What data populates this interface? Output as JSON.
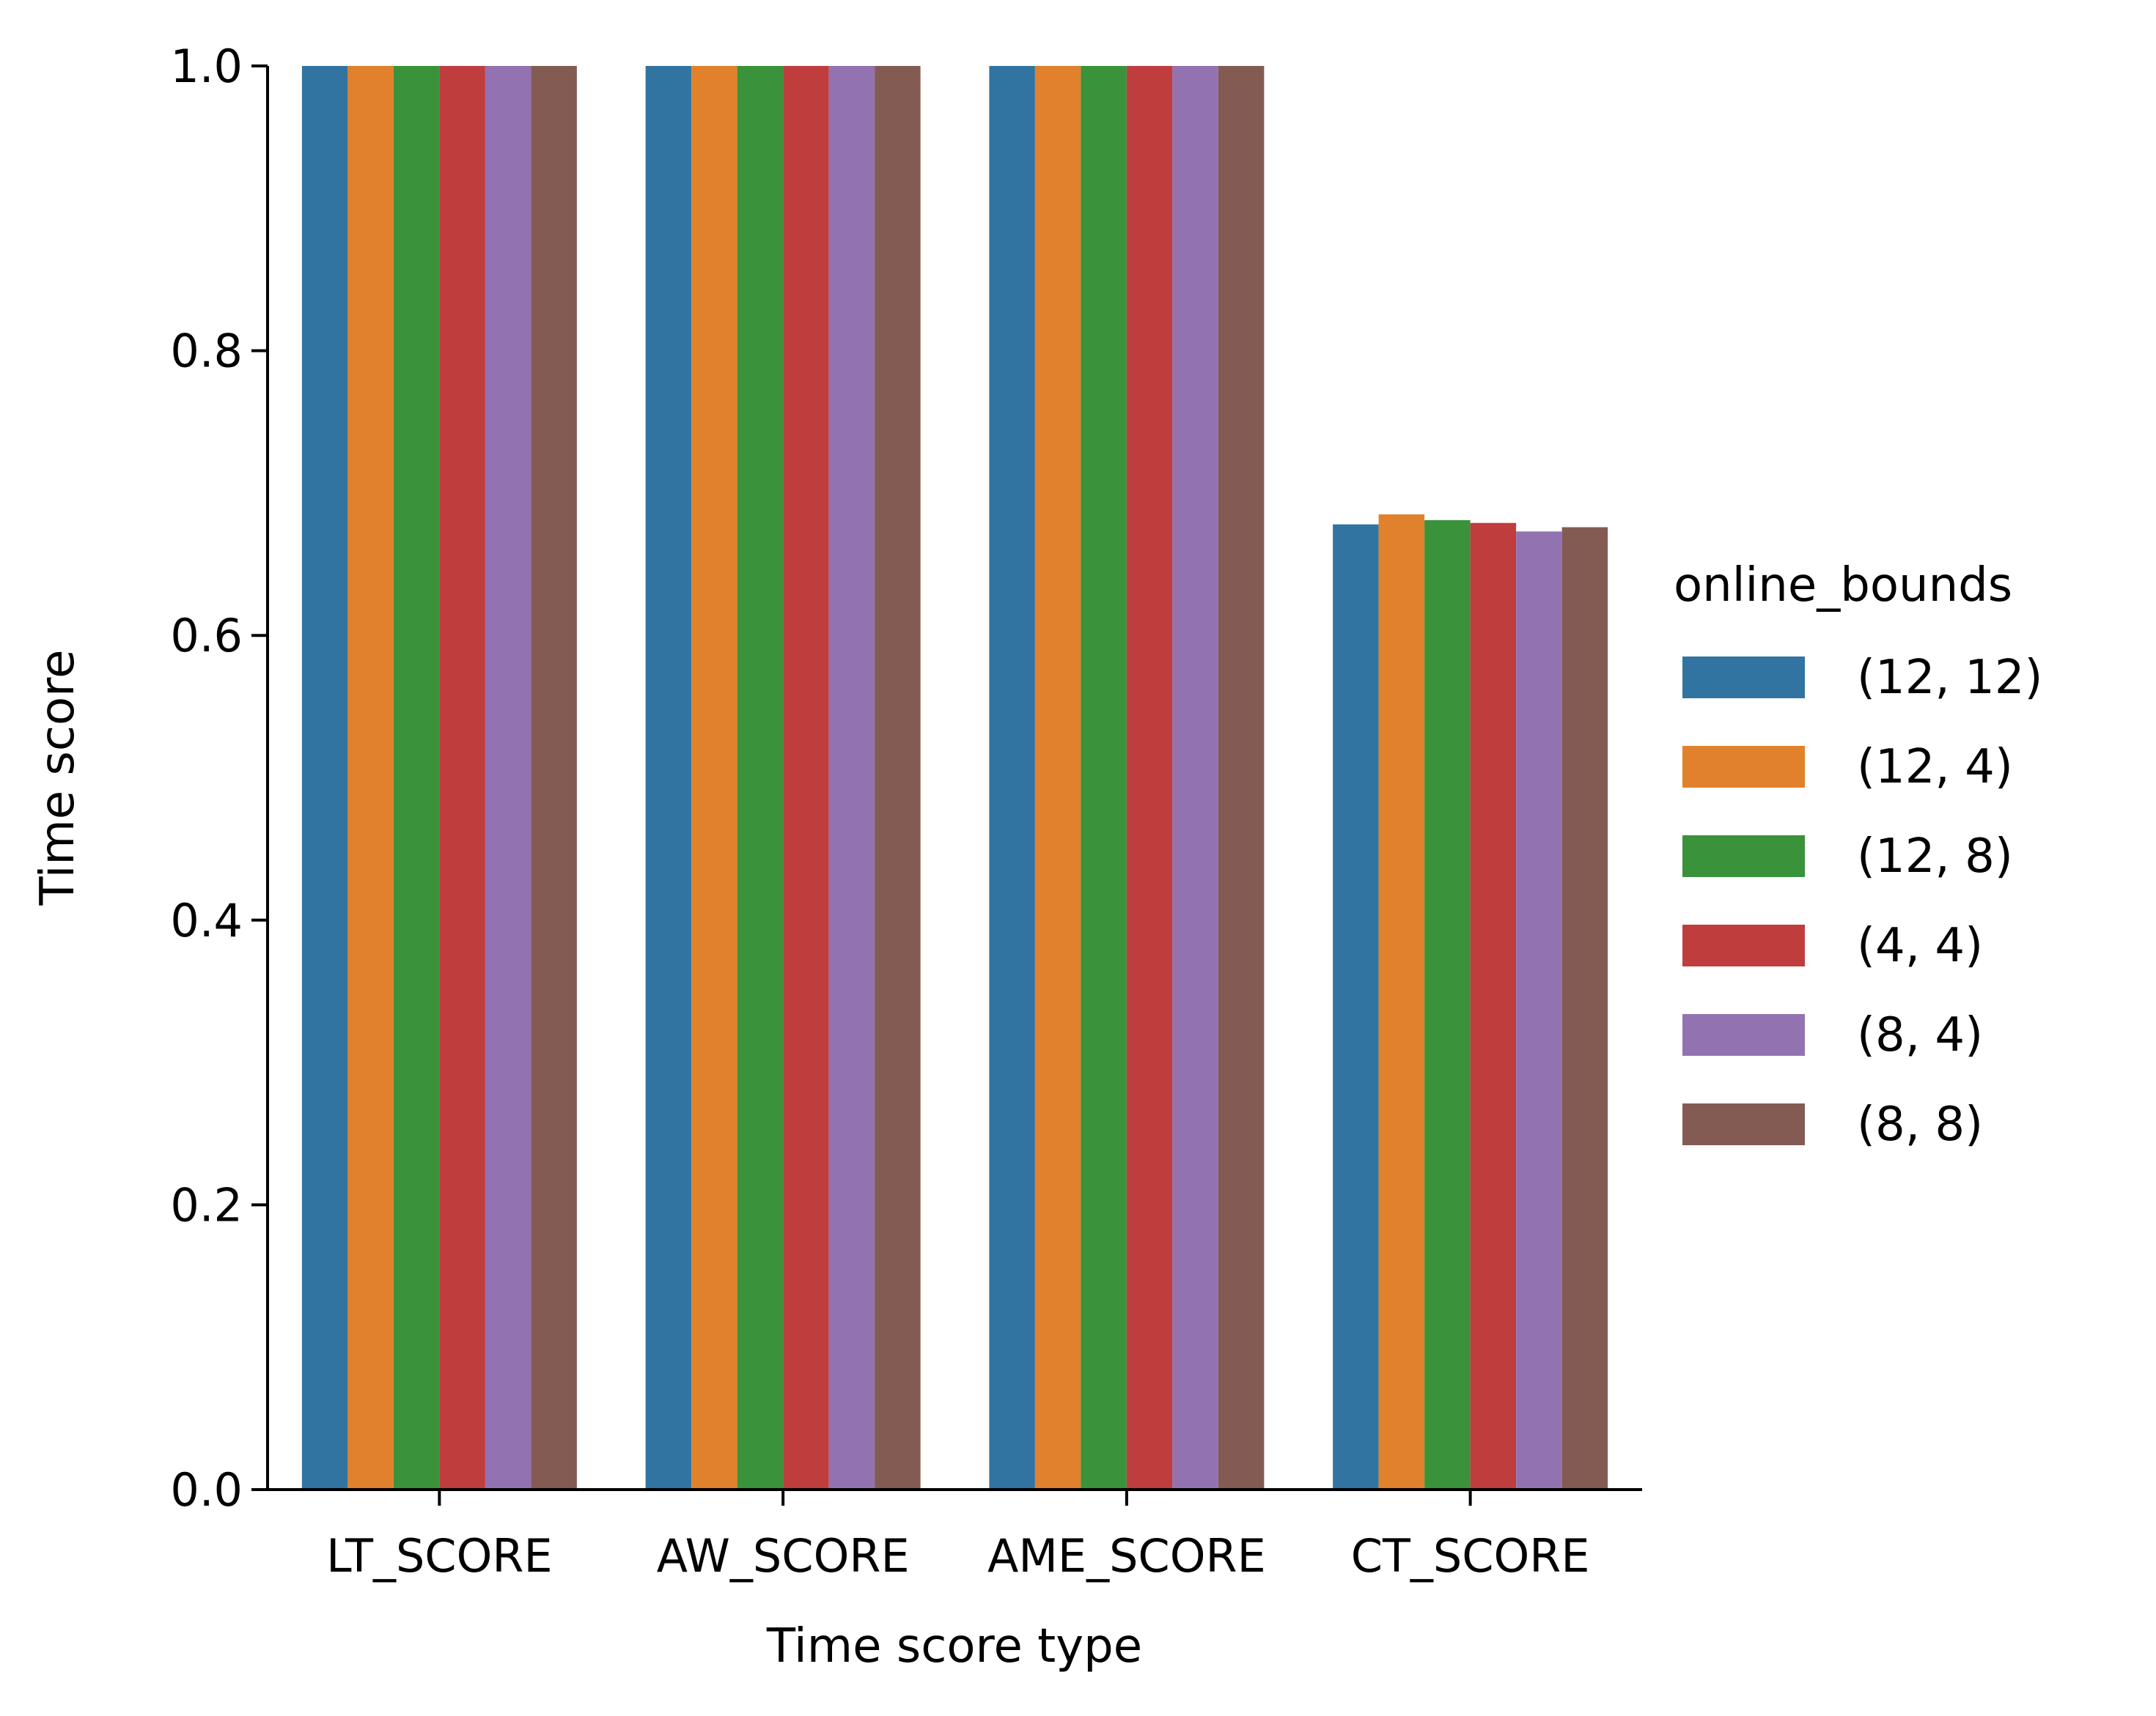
{
  "chart_data": {
    "type": "bar",
    "title": "",
    "xlabel": "Time score type",
    "ylabel": "Time score",
    "ylim": [
      0,
      1.0
    ],
    "yticks": [
      "0.0",
      "0.2",
      "0.4",
      "0.6",
      "0.8",
      "1.0"
    ],
    "categories": [
      "LT_SCORE",
      "AW_SCORE",
      "AME_SCORE",
      "CT_SCORE"
    ],
    "legend": {
      "title": "online_bounds",
      "placement": "right"
    },
    "grid": false,
    "series": [
      {
        "name": "(12, 12)",
        "color": "#3274a1",
        "values": [
          1.0,
          1.0,
          1.0,
          0.678
        ]
      },
      {
        "name": "(12, 4)",
        "color": "#e1812c",
        "values": [
          1.0,
          1.0,
          1.0,
          0.685
        ]
      },
      {
        "name": "(12, 8)",
        "color": "#3a923a",
        "values": [
          1.0,
          1.0,
          1.0,
          0.681
        ]
      },
      {
        "name": "(4, 4)",
        "color": "#c03d3e",
        "values": [
          1.0,
          1.0,
          1.0,
          0.679
        ]
      },
      {
        "name": "(8, 4)",
        "color": "#9372b2",
        "values": [
          1.0,
          1.0,
          1.0,
          0.673
        ]
      },
      {
        "name": "(8, 8)",
        "color": "#845b53",
        "values": [
          1.0,
          1.0,
          1.0,
          0.676
        ]
      }
    ]
  }
}
